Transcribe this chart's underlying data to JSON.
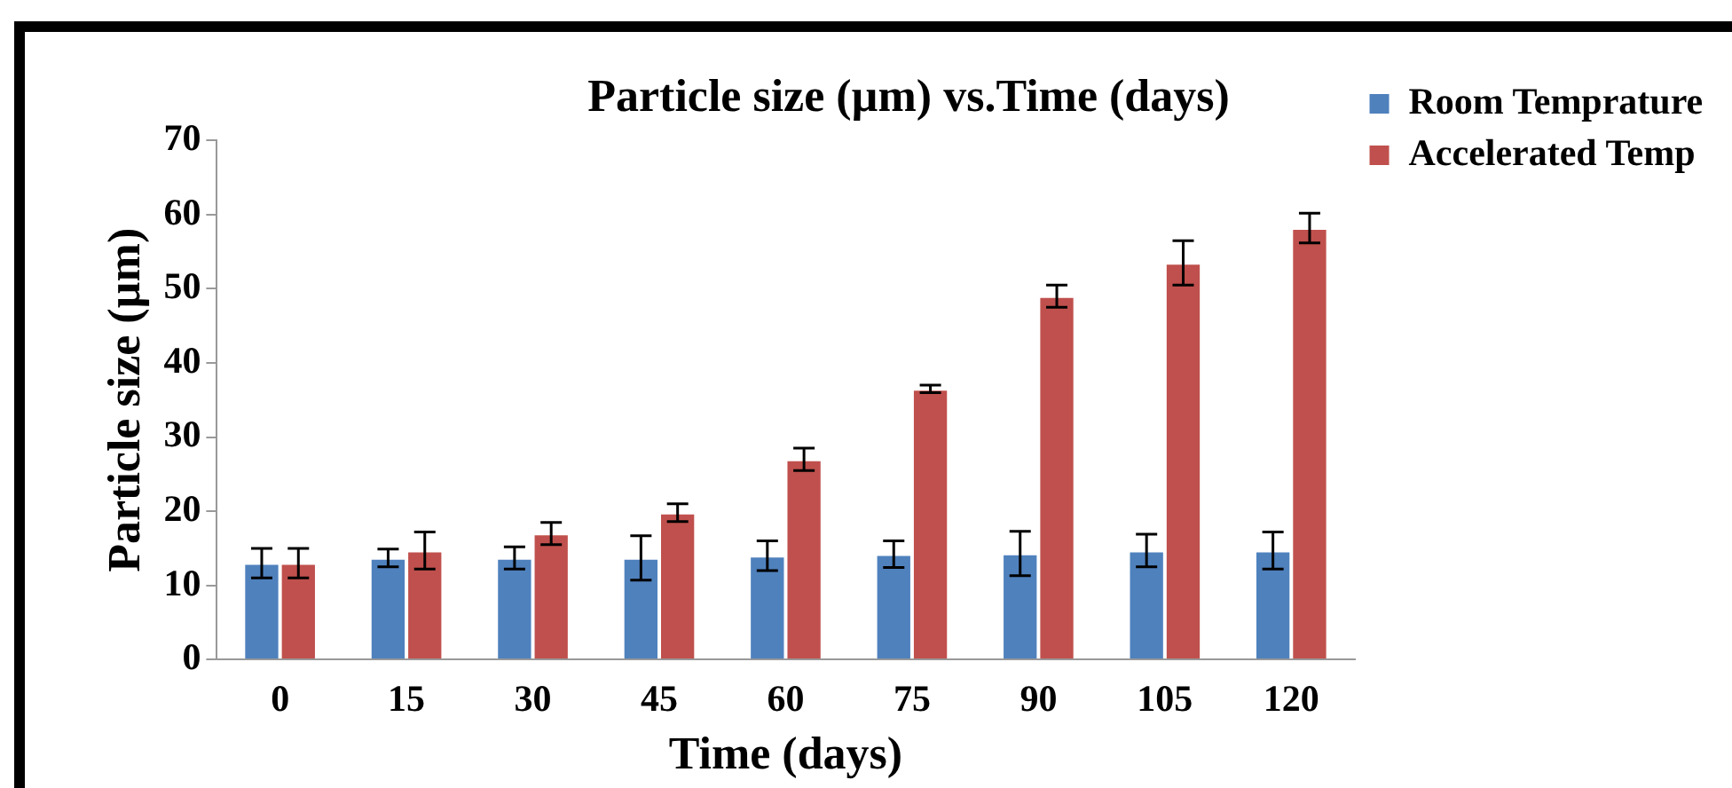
{
  "chart_data": {
    "type": "bar",
    "title": "Particle size (µm) vs.Time (days)",
    "xlabel": "Time (days)",
    "ylabel": "Particle size (µm)",
    "categories": [
      "0",
      "15",
      "30",
      "45",
      "60",
      "75",
      "90",
      "105",
      "120"
    ],
    "series": [
      {
        "name": "Room Temprature",
        "color": "#4f81bd",
        "values": [
          13,
          13.7,
          13.7,
          13.7,
          14,
          14.2,
          14.3,
          14.7,
          14.7
        ],
        "errors": [
          2,
          1.2,
          1.5,
          3,
          2,
          1.8,
          3,
          2.2,
          2.5
        ]
      },
      {
        "name": "Accelerated Temp",
        "color": "#c0504d",
        "values": [
          13,
          14.7,
          17,
          19.8,
          27,
          36.5,
          49,
          53.5,
          58.2
        ],
        "errors": [
          2,
          2.5,
          1.5,
          1.2,
          1.5,
          0.5,
          1.5,
          3,
          2
        ]
      }
    ],
    "ylim": [
      0,
      70
    ],
    "yticks": [
      0,
      10,
      20,
      30,
      40,
      50,
      60,
      70
    ],
    "grid": false,
    "legend": "top right"
  }
}
